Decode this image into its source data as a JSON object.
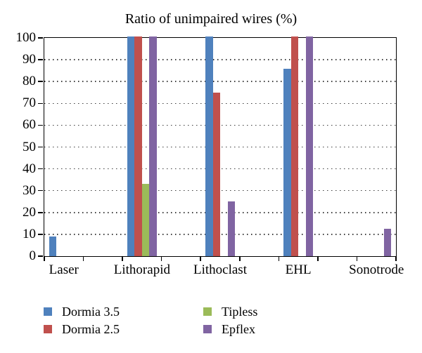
{
  "chart_data": {
    "type": "bar",
    "title": "Ratio of unimpaired wires (%)",
    "categories": [
      "Laser",
      "Lithorapid",
      "Lithoclast",
      "EHL",
      "Sonotrode"
    ],
    "series": [
      {
        "name": "Dormia 3.5",
        "color": "#4F81BD",
        "values": [
          9,
          100,
          100,
          86,
          0
        ]
      },
      {
        "name": "Dormia 2.5",
        "color": "#C0504D",
        "values": [
          0,
          100,
          75,
          100,
          0
        ]
      },
      {
        "name": "Tipless",
        "color": "#9BBB59",
        "values": [
          0,
          33,
          0,
          0,
          0
        ]
      },
      {
        "name": "Epflex",
        "color": "#8064A2",
        "values": [
          0,
          100,
          25,
          100,
          12.5
        ]
      }
    ],
    "xlabel": "",
    "ylabel": "",
    "ylim": [
      0,
      100
    ],
    "yticks": [
      0,
      10,
      20,
      30,
      40,
      50,
      60,
      70,
      80,
      90,
      100
    ],
    "grid": "horizontal-dotted",
    "spacer_between_categories": true,
    "legend_position": "bottom",
    "legend_columns": 2,
    "axis_color": "#000000",
    "background": "#ffffff"
  }
}
